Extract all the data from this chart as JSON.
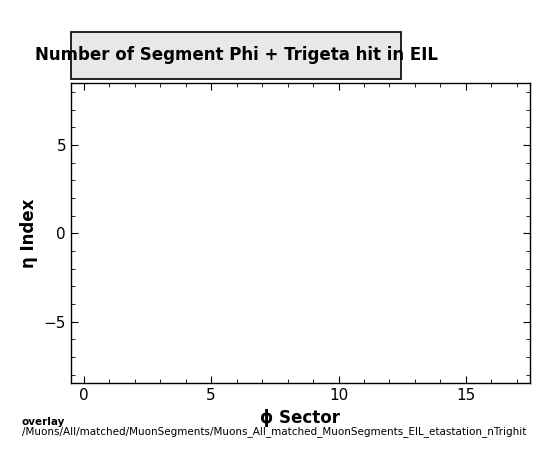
{
  "title": "Number of Segment Phi + Trigeta hit in EIL",
  "xlabel": "ϕ Sector",
  "ylabel": "η Index",
  "xlim": [
    -0.5,
    17.5
  ],
  "ylim": [
    -8.5,
    8.5
  ],
  "xticks": [
    0,
    5,
    10,
    15
  ],
  "yticks": [
    -5,
    0,
    5
  ],
  "background_color": "#ffffff",
  "plot_bg_color": "#ffffff",
  "footer_line1": "overlay",
  "footer_line2": "/Muons/All/matched/MuonSegments/Muons_All_matched_MuonSegments_EIL_etastation_nTrighit",
  "title_fontsize": 12,
  "label_fontsize": 12,
  "tick_fontsize": 11,
  "footer_fontsize": 7.5
}
